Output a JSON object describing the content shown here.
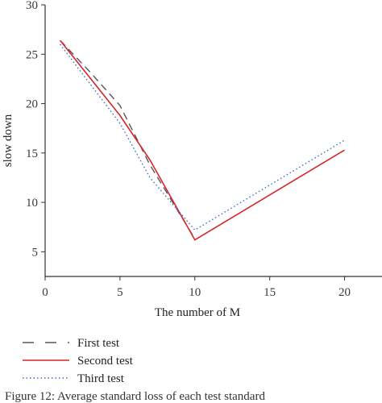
{
  "chart_data": {
    "type": "line",
    "xlabel": "The number of M",
    "ylabel": "slow down",
    "xlim": [
      0,
      22.5
    ],
    "ylim": [
      2.5,
      30
    ],
    "xticks": [
      0,
      5,
      10,
      15,
      20
    ],
    "yticks": [
      5,
      10,
      15,
      20,
      25,
      30
    ],
    "grid": false,
    "legend_position": "bottom-left",
    "series": [
      {
        "name": "First test",
        "style": "dashed",
        "color": "#555566",
        "x": [
          1,
          3,
          5,
          7,
          10
        ],
        "y": [
          26.4,
          23.2,
          19.8,
          13.8,
          6.3
        ]
      },
      {
        "name": "Second test",
        "style": "solid",
        "color": "#d62728",
        "x": [
          1,
          5,
          7,
          10,
          20
        ],
        "y": [
          26.4,
          18.8,
          14.3,
          6.2,
          15.3
        ]
      },
      {
        "name": "Third test",
        "style": "dotted",
        "color": "#3d6bc4",
        "x": [
          1,
          5,
          7,
          10,
          20
        ],
        "y": [
          26.0,
          18.0,
          12.5,
          7.2,
          16.3
        ]
      }
    ]
  },
  "caption": "Figure 12: Average standard loss of each test standard"
}
